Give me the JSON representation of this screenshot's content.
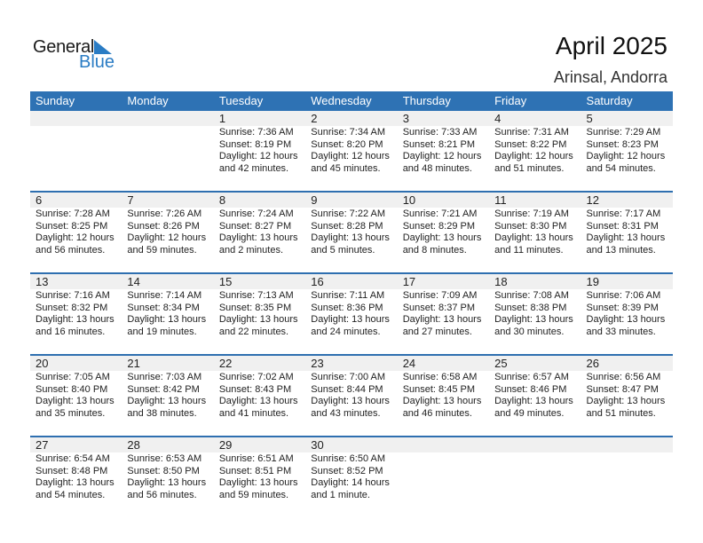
{
  "logo": {
    "word1": "General",
    "word2": "Blue"
  },
  "title": "April 2025",
  "location": "Arinsal, Andorra",
  "colors": {
    "header": "#2e72b4",
    "logo_blue": "#2a7cc4",
    "band": "#f0f0f0"
  },
  "days": [
    "Sunday",
    "Monday",
    "Tuesday",
    "Wednesday",
    "Thursday",
    "Friday",
    "Saturday"
  ],
  "weeks": [
    [
      null,
      null,
      {
        "day": "1",
        "sunrise": "Sunrise: 7:36 AM",
        "sunset": "Sunset: 8:19 PM",
        "daylight": "Daylight: 12 hours",
        "minutes": "and 42 minutes."
      },
      {
        "day": "2",
        "sunrise": "Sunrise: 7:34 AM",
        "sunset": "Sunset: 8:20 PM",
        "daylight": "Daylight: 12 hours",
        "minutes": "and 45 minutes."
      },
      {
        "day": "3",
        "sunrise": "Sunrise: 7:33 AM",
        "sunset": "Sunset: 8:21 PM",
        "daylight": "Daylight: 12 hours",
        "minutes": "and 48 minutes."
      },
      {
        "day": "4",
        "sunrise": "Sunrise: 7:31 AM",
        "sunset": "Sunset: 8:22 PM",
        "daylight": "Daylight: 12 hours",
        "minutes": "and 51 minutes."
      },
      {
        "day": "5",
        "sunrise": "Sunrise: 7:29 AM",
        "sunset": "Sunset: 8:23 PM",
        "daylight": "Daylight: 12 hours",
        "minutes": "and 54 minutes."
      }
    ],
    [
      {
        "day": "6",
        "sunrise": "Sunrise: 7:28 AM",
        "sunset": "Sunset: 8:25 PM",
        "daylight": "Daylight: 12 hours",
        "minutes": "and 56 minutes."
      },
      {
        "day": "7",
        "sunrise": "Sunrise: 7:26 AM",
        "sunset": "Sunset: 8:26 PM",
        "daylight": "Daylight: 12 hours",
        "minutes": "and 59 minutes."
      },
      {
        "day": "8",
        "sunrise": "Sunrise: 7:24 AM",
        "sunset": "Sunset: 8:27 PM",
        "daylight": "Daylight: 13 hours",
        "minutes": "and 2 minutes."
      },
      {
        "day": "9",
        "sunrise": "Sunrise: 7:22 AM",
        "sunset": "Sunset: 8:28 PM",
        "daylight": "Daylight: 13 hours",
        "minutes": "and 5 minutes."
      },
      {
        "day": "10",
        "sunrise": "Sunrise: 7:21 AM",
        "sunset": "Sunset: 8:29 PM",
        "daylight": "Daylight: 13 hours",
        "minutes": "and 8 minutes."
      },
      {
        "day": "11",
        "sunrise": "Sunrise: 7:19 AM",
        "sunset": "Sunset: 8:30 PM",
        "daylight": "Daylight: 13 hours",
        "minutes": "and 11 minutes."
      },
      {
        "day": "12",
        "sunrise": "Sunrise: 7:17 AM",
        "sunset": "Sunset: 8:31 PM",
        "daylight": "Daylight: 13 hours",
        "minutes": "and 13 minutes."
      }
    ],
    [
      {
        "day": "13",
        "sunrise": "Sunrise: 7:16 AM",
        "sunset": "Sunset: 8:32 PM",
        "daylight": "Daylight: 13 hours",
        "minutes": "and 16 minutes."
      },
      {
        "day": "14",
        "sunrise": "Sunrise: 7:14 AM",
        "sunset": "Sunset: 8:34 PM",
        "daylight": "Daylight: 13 hours",
        "minutes": "and 19 minutes."
      },
      {
        "day": "15",
        "sunrise": "Sunrise: 7:13 AM",
        "sunset": "Sunset: 8:35 PM",
        "daylight": "Daylight: 13 hours",
        "minutes": "and 22 minutes."
      },
      {
        "day": "16",
        "sunrise": "Sunrise: 7:11 AM",
        "sunset": "Sunset: 8:36 PM",
        "daylight": "Daylight: 13 hours",
        "minutes": "and 24 minutes."
      },
      {
        "day": "17",
        "sunrise": "Sunrise: 7:09 AM",
        "sunset": "Sunset: 8:37 PM",
        "daylight": "Daylight: 13 hours",
        "minutes": "and 27 minutes."
      },
      {
        "day": "18",
        "sunrise": "Sunrise: 7:08 AM",
        "sunset": "Sunset: 8:38 PM",
        "daylight": "Daylight: 13 hours",
        "minutes": "and 30 minutes."
      },
      {
        "day": "19",
        "sunrise": "Sunrise: 7:06 AM",
        "sunset": "Sunset: 8:39 PM",
        "daylight": "Daylight: 13 hours",
        "minutes": "and 33 minutes."
      }
    ],
    [
      {
        "day": "20",
        "sunrise": "Sunrise: 7:05 AM",
        "sunset": "Sunset: 8:40 PM",
        "daylight": "Daylight: 13 hours",
        "minutes": "and 35 minutes."
      },
      {
        "day": "21",
        "sunrise": "Sunrise: 7:03 AM",
        "sunset": "Sunset: 8:42 PM",
        "daylight": "Daylight: 13 hours",
        "minutes": "and 38 minutes."
      },
      {
        "day": "22",
        "sunrise": "Sunrise: 7:02 AM",
        "sunset": "Sunset: 8:43 PM",
        "daylight": "Daylight: 13 hours",
        "minutes": "and 41 minutes."
      },
      {
        "day": "23",
        "sunrise": "Sunrise: 7:00 AM",
        "sunset": "Sunset: 8:44 PM",
        "daylight": "Daylight: 13 hours",
        "minutes": "and 43 minutes."
      },
      {
        "day": "24",
        "sunrise": "Sunrise: 6:58 AM",
        "sunset": "Sunset: 8:45 PM",
        "daylight": "Daylight: 13 hours",
        "minutes": "and 46 minutes."
      },
      {
        "day": "25",
        "sunrise": "Sunrise: 6:57 AM",
        "sunset": "Sunset: 8:46 PM",
        "daylight": "Daylight: 13 hours",
        "minutes": "and 49 minutes."
      },
      {
        "day": "26",
        "sunrise": "Sunrise: 6:56 AM",
        "sunset": "Sunset: 8:47 PM",
        "daylight": "Daylight: 13 hours",
        "minutes": "and 51 minutes."
      }
    ],
    [
      {
        "day": "27",
        "sunrise": "Sunrise: 6:54 AM",
        "sunset": "Sunset: 8:48 PM",
        "daylight": "Daylight: 13 hours",
        "minutes": "and 54 minutes."
      },
      {
        "day": "28",
        "sunrise": "Sunrise: 6:53 AM",
        "sunset": "Sunset: 8:50 PM",
        "daylight": "Daylight: 13 hours",
        "minutes": "and 56 minutes."
      },
      {
        "day": "29",
        "sunrise": "Sunrise: 6:51 AM",
        "sunset": "Sunset: 8:51 PM",
        "daylight": "Daylight: 13 hours",
        "minutes": "and 59 minutes."
      },
      {
        "day": "30",
        "sunrise": "Sunrise: 6:50 AM",
        "sunset": "Sunset: 8:52 PM",
        "daylight": "Daylight: 14 hours",
        "minutes": "and 1 minute."
      },
      null,
      null,
      null
    ]
  ]
}
